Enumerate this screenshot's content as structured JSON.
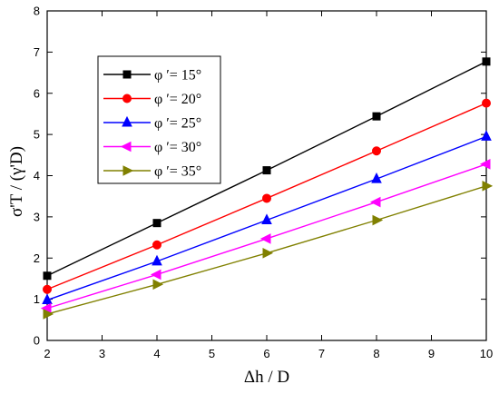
{
  "chart_data": {
    "type": "line",
    "xlabel": "Δh / D",
    "ylabel": "σ'T / (γ'D)",
    "xlim": [
      2,
      10
    ],
    "ylim": [
      0,
      8
    ],
    "x_ticks": [
      2,
      3,
      4,
      5,
      6,
      7,
      8,
      9,
      10
    ],
    "y_ticks": [
      0,
      1,
      2,
      3,
      4,
      5,
      6,
      7,
      8
    ],
    "grid": false,
    "legend_position": "top-left",
    "series": [
      {
        "name": "φ ′= 15°",
        "color": "#000000",
        "marker": "square",
        "x": [
          2,
          4,
          6,
          8,
          10
        ],
        "y": [
          1.57,
          2.85,
          4.13,
          5.44,
          6.77
        ]
      },
      {
        "name": "φ ′= 20°",
        "color": "#ff0000",
        "marker": "circle",
        "x": [
          2,
          4,
          6,
          8,
          10
        ],
        "y": [
          1.24,
          2.32,
          3.45,
          4.6,
          5.76
        ]
      },
      {
        "name": "φ ′= 25°",
        "color": "#0000ff",
        "marker": "triangle-up",
        "x": [
          2,
          4,
          6,
          8,
          10
        ],
        "y": [
          0.98,
          1.92,
          2.92,
          3.92,
          4.95
        ]
      },
      {
        "name": "φ ′= 30°",
        "color": "#ff00ff",
        "marker": "triangle-left",
        "x": [
          2,
          4,
          6,
          8,
          10
        ],
        "y": [
          0.78,
          1.6,
          2.47,
          3.36,
          4.28
        ]
      },
      {
        "name": "φ ′= 35°",
        "color": "#808000",
        "marker": "triangle-right",
        "x": [
          2,
          4,
          6,
          8,
          10
        ],
        "y": [
          0.64,
          1.36,
          2.12,
          2.92,
          3.75
        ]
      }
    ]
  }
}
